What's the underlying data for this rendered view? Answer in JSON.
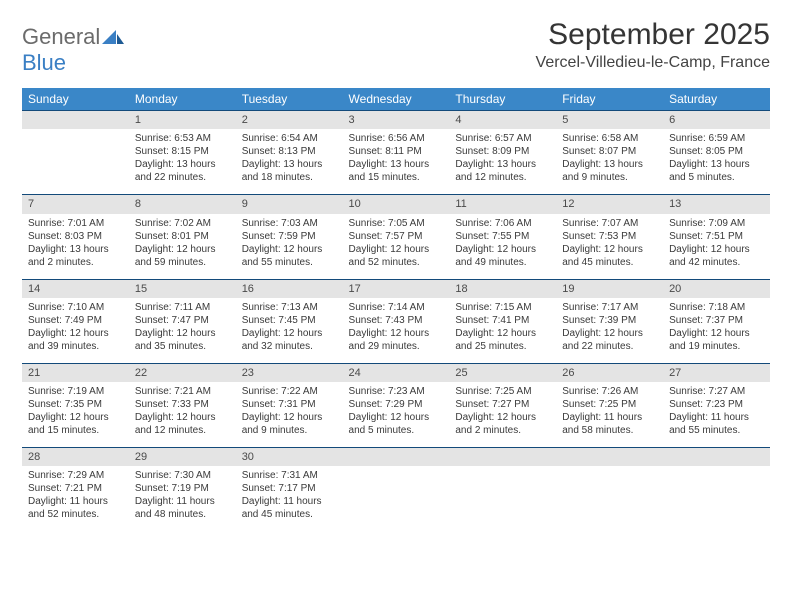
{
  "logo": {
    "text1": "General",
    "text2": "Blue"
  },
  "title": "September 2025",
  "location": "Vercel-Villedieu-le-Camp, France",
  "colors": {
    "header_bg": "#3a87c8",
    "daynum_bg": "#e4e4e4",
    "day_border": "#134a7a",
    "logo_gray": "#6b6b6b",
    "logo_blue": "#3a7fc4"
  },
  "weekdays": [
    "Sunday",
    "Monday",
    "Tuesday",
    "Wednesday",
    "Thursday",
    "Friday",
    "Saturday"
  ],
  "weeks": [
    [
      null,
      {
        "n": "1",
        "sr": "6:53 AM",
        "ss": "8:15 PM",
        "dl": "13 hours and 22 minutes."
      },
      {
        "n": "2",
        "sr": "6:54 AM",
        "ss": "8:13 PM",
        "dl": "13 hours and 18 minutes."
      },
      {
        "n": "3",
        "sr": "6:56 AM",
        "ss": "8:11 PM",
        "dl": "13 hours and 15 minutes."
      },
      {
        "n": "4",
        "sr": "6:57 AM",
        "ss": "8:09 PM",
        "dl": "13 hours and 12 minutes."
      },
      {
        "n": "5",
        "sr": "6:58 AM",
        "ss": "8:07 PM",
        "dl": "13 hours and 9 minutes."
      },
      {
        "n": "6",
        "sr": "6:59 AM",
        "ss": "8:05 PM",
        "dl": "13 hours and 5 minutes."
      }
    ],
    [
      {
        "n": "7",
        "sr": "7:01 AM",
        "ss": "8:03 PM",
        "dl": "13 hours and 2 minutes."
      },
      {
        "n": "8",
        "sr": "7:02 AM",
        "ss": "8:01 PM",
        "dl": "12 hours and 59 minutes."
      },
      {
        "n": "9",
        "sr": "7:03 AM",
        "ss": "7:59 PM",
        "dl": "12 hours and 55 minutes."
      },
      {
        "n": "10",
        "sr": "7:05 AM",
        "ss": "7:57 PM",
        "dl": "12 hours and 52 minutes."
      },
      {
        "n": "11",
        "sr": "7:06 AM",
        "ss": "7:55 PM",
        "dl": "12 hours and 49 minutes."
      },
      {
        "n": "12",
        "sr": "7:07 AM",
        "ss": "7:53 PM",
        "dl": "12 hours and 45 minutes."
      },
      {
        "n": "13",
        "sr": "7:09 AM",
        "ss": "7:51 PM",
        "dl": "12 hours and 42 minutes."
      }
    ],
    [
      {
        "n": "14",
        "sr": "7:10 AM",
        "ss": "7:49 PM",
        "dl": "12 hours and 39 minutes."
      },
      {
        "n": "15",
        "sr": "7:11 AM",
        "ss": "7:47 PM",
        "dl": "12 hours and 35 minutes."
      },
      {
        "n": "16",
        "sr": "7:13 AM",
        "ss": "7:45 PM",
        "dl": "12 hours and 32 minutes."
      },
      {
        "n": "17",
        "sr": "7:14 AM",
        "ss": "7:43 PM",
        "dl": "12 hours and 29 minutes."
      },
      {
        "n": "18",
        "sr": "7:15 AM",
        "ss": "7:41 PM",
        "dl": "12 hours and 25 minutes."
      },
      {
        "n": "19",
        "sr": "7:17 AM",
        "ss": "7:39 PM",
        "dl": "12 hours and 22 minutes."
      },
      {
        "n": "20",
        "sr": "7:18 AM",
        "ss": "7:37 PM",
        "dl": "12 hours and 19 minutes."
      }
    ],
    [
      {
        "n": "21",
        "sr": "7:19 AM",
        "ss": "7:35 PM",
        "dl": "12 hours and 15 minutes."
      },
      {
        "n": "22",
        "sr": "7:21 AM",
        "ss": "7:33 PM",
        "dl": "12 hours and 12 minutes."
      },
      {
        "n": "23",
        "sr": "7:22 AM",
        "ss": "7:31 PM",
        "dl": "12 hours and 9 minutes."
      },
      {
        "n": "24",
        "sr": "7:23 AM",
        "ss": "7:29 PM",
        "dl": "12 hours and 5 minutes."
      },
      {
        "n": "25",
        "sr": "7:25 AM",
        "ss": "7:27 PM",
        "dl": "12 hours and 2 minutes."
      },
      {
        "n": "26",
        "sr": "7:26 AM",
        "ss": "7:25 PM",
        "dl": "11 hours and 58 minutes."
      },
      {
        "n": "27",
        "sr": "7:27 AM",
        "ss": "7:23 PM",
        "dl": "11 hours and 55 minutes."
      }
    ],
    [
      {
        "n": "28",
        "sr": "7:29 AM",
        "ss": "7:21 PM",
        "dl": "11 hours and 52 minutes."
      },
      {
        "n": "29",
        "sr": "7:30 AM",
        "ss": "7:19 PM",
        "dl": "11 hours and 48 minutes."
      },
      {
        "n": "30",
        "sr": "7:31 AM",
        "ss": "7:17 PM",
        "dl": "11 hours and 45 minutes."
      },
      null,
      null,
      null,
      null
    ]
  ],
  "labels": {
    "sunrise": "Sunrise:",
    "sunset": "Sunset:",
    "daylight": "Daylight:"
  }
}
